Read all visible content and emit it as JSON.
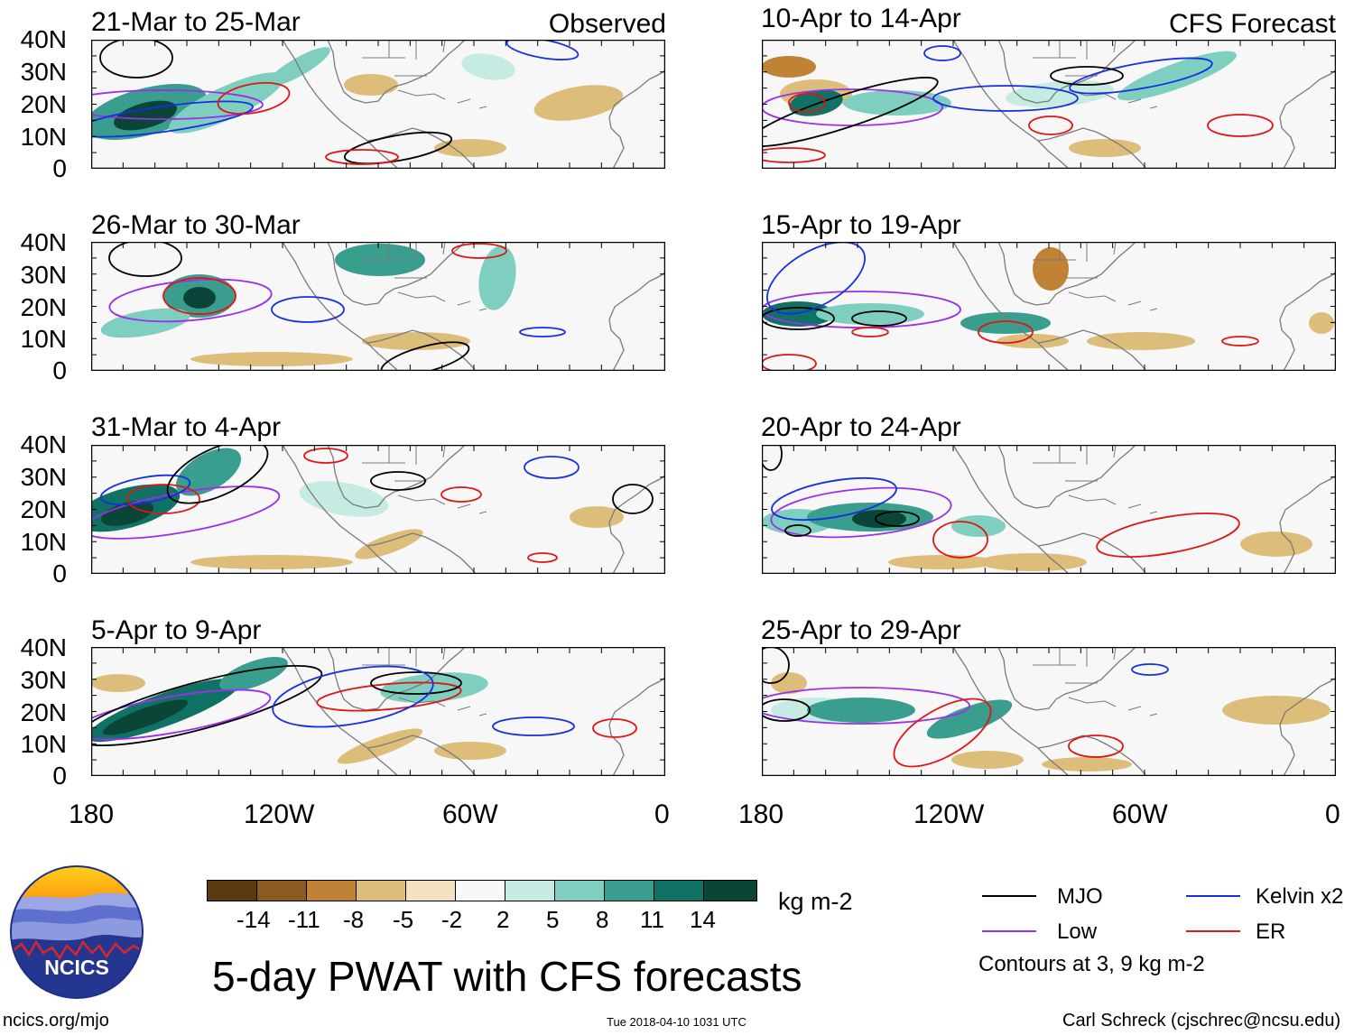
{
  "source_label": "Observed",
  "forecast_label": "CFS Forecast",
  "panels": [
    {
      "title": "21-Mar to 25-Mar",
      "column": "observed"
    },
    {
      "title": "26-Mar to 30-Mar",
      "column": "observed"
    },
    {
      "title": "31-Mar to 4-Apr",
      "column": "observed"
    },
    {
      "title": "5-Apr to 9-Apr",
      "column": "observed"
    },
    {
      "title": "10-Apr to 14-Apr",
      "column": "forecast"
    },
    {
      "title": "15-Apr to 19-Apr",
      "column": "forecast"
    },
    {
      "title": "20-Apr to 24-Apr",
      "column": "forecast"
    },
    {
      "title": "25-Apr to 29-Apr",
      "column": "forecast"
    }
  ],
  "lat_labels": [
    "40N",
    "30N",
    "20N",
    "10N",
    "0"
  ],
  "lon_labels": [
    "180",
    "120W",
    "60W",
    "0"
  ],
  "colorbar": {
    "colors": [
      "#5c3a0f",
      "#8a5a24",
      "#c08335",
      "#ddbd7a",
      "#f2e2bf",
      "#f7f7f7",
      "#c6ebe3",
      "#7fcfc0",
      "#3a9e8e",
      "#0f7265",
      "#0b4538"
    ],
    "labels": [
      "-14",
      "-11",
      "-8",
      "-5",
      "-2",
      "2",
      "5",
      "8",
      "11",
      "14"
    ],
    "units": "kg m-2"
  },
  "legend": {
    "items": [
      {
        "label": "MJO",
        "color": "#000000"
      },
      {
        "label": "Kelvin x2",
        "color": "#1530e0"
      },
      {
        "label": "Low",
        "color": "#9a30e8"
      },
      {
        "label": "ER",
        "color": "#e01515"
      }
    ],
    "note": "Contours at 3, 9 kg m-2"
  },
  "main_title": "5-day PWAT with CFS forecasts",
  "logo_text": "NCICS",
  "footer": {
    "url": "ncics.org/mjo",
    "timestamp": "Tue 2018-04-10 1031 UTC",
    "credit": "Carl Schreck (cjschrec@ncsu.edu)"
  }
}
